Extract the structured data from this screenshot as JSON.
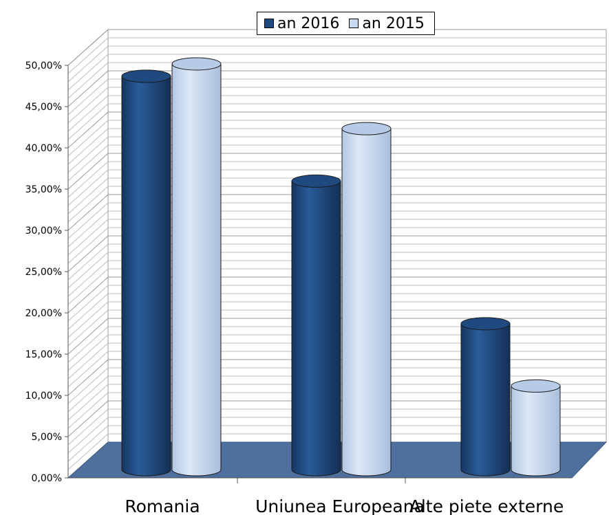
{
  "chart_data": {
    "type": "bar",
    "categories": [
      "Romania",
      "Uniunea Europeana",
      "Alte piete externe"
    ],
    "series": [
      {
        "name": "an 2016",
        "values": [
          48.0,
          35.2,
          17.8
        ],
        "color": "#1f4a80"
      },
      {
        "name": "an 2015",
        "values": [
          49.5,
          41.6,
          10.2
        ],
        "color": "#c6d9f1"
      }
    ],
    "ylim": [
      0,
      50
    ],
    "yticks": [
      "0,00%",
      "5,00%",
      "10,00%",
      "15,00%",
      "20,00%",
      "25,00%",
      "30,00%",
      "35,00%",
      "40,00%",
      "45,00%",
      "50,00%"
    ],
    "title": "",
    "xlabel": "",
    "ylabel": "",
    "legend": "top",
    "grid": true,
    "style": "3d-cylinder"
  }
}
